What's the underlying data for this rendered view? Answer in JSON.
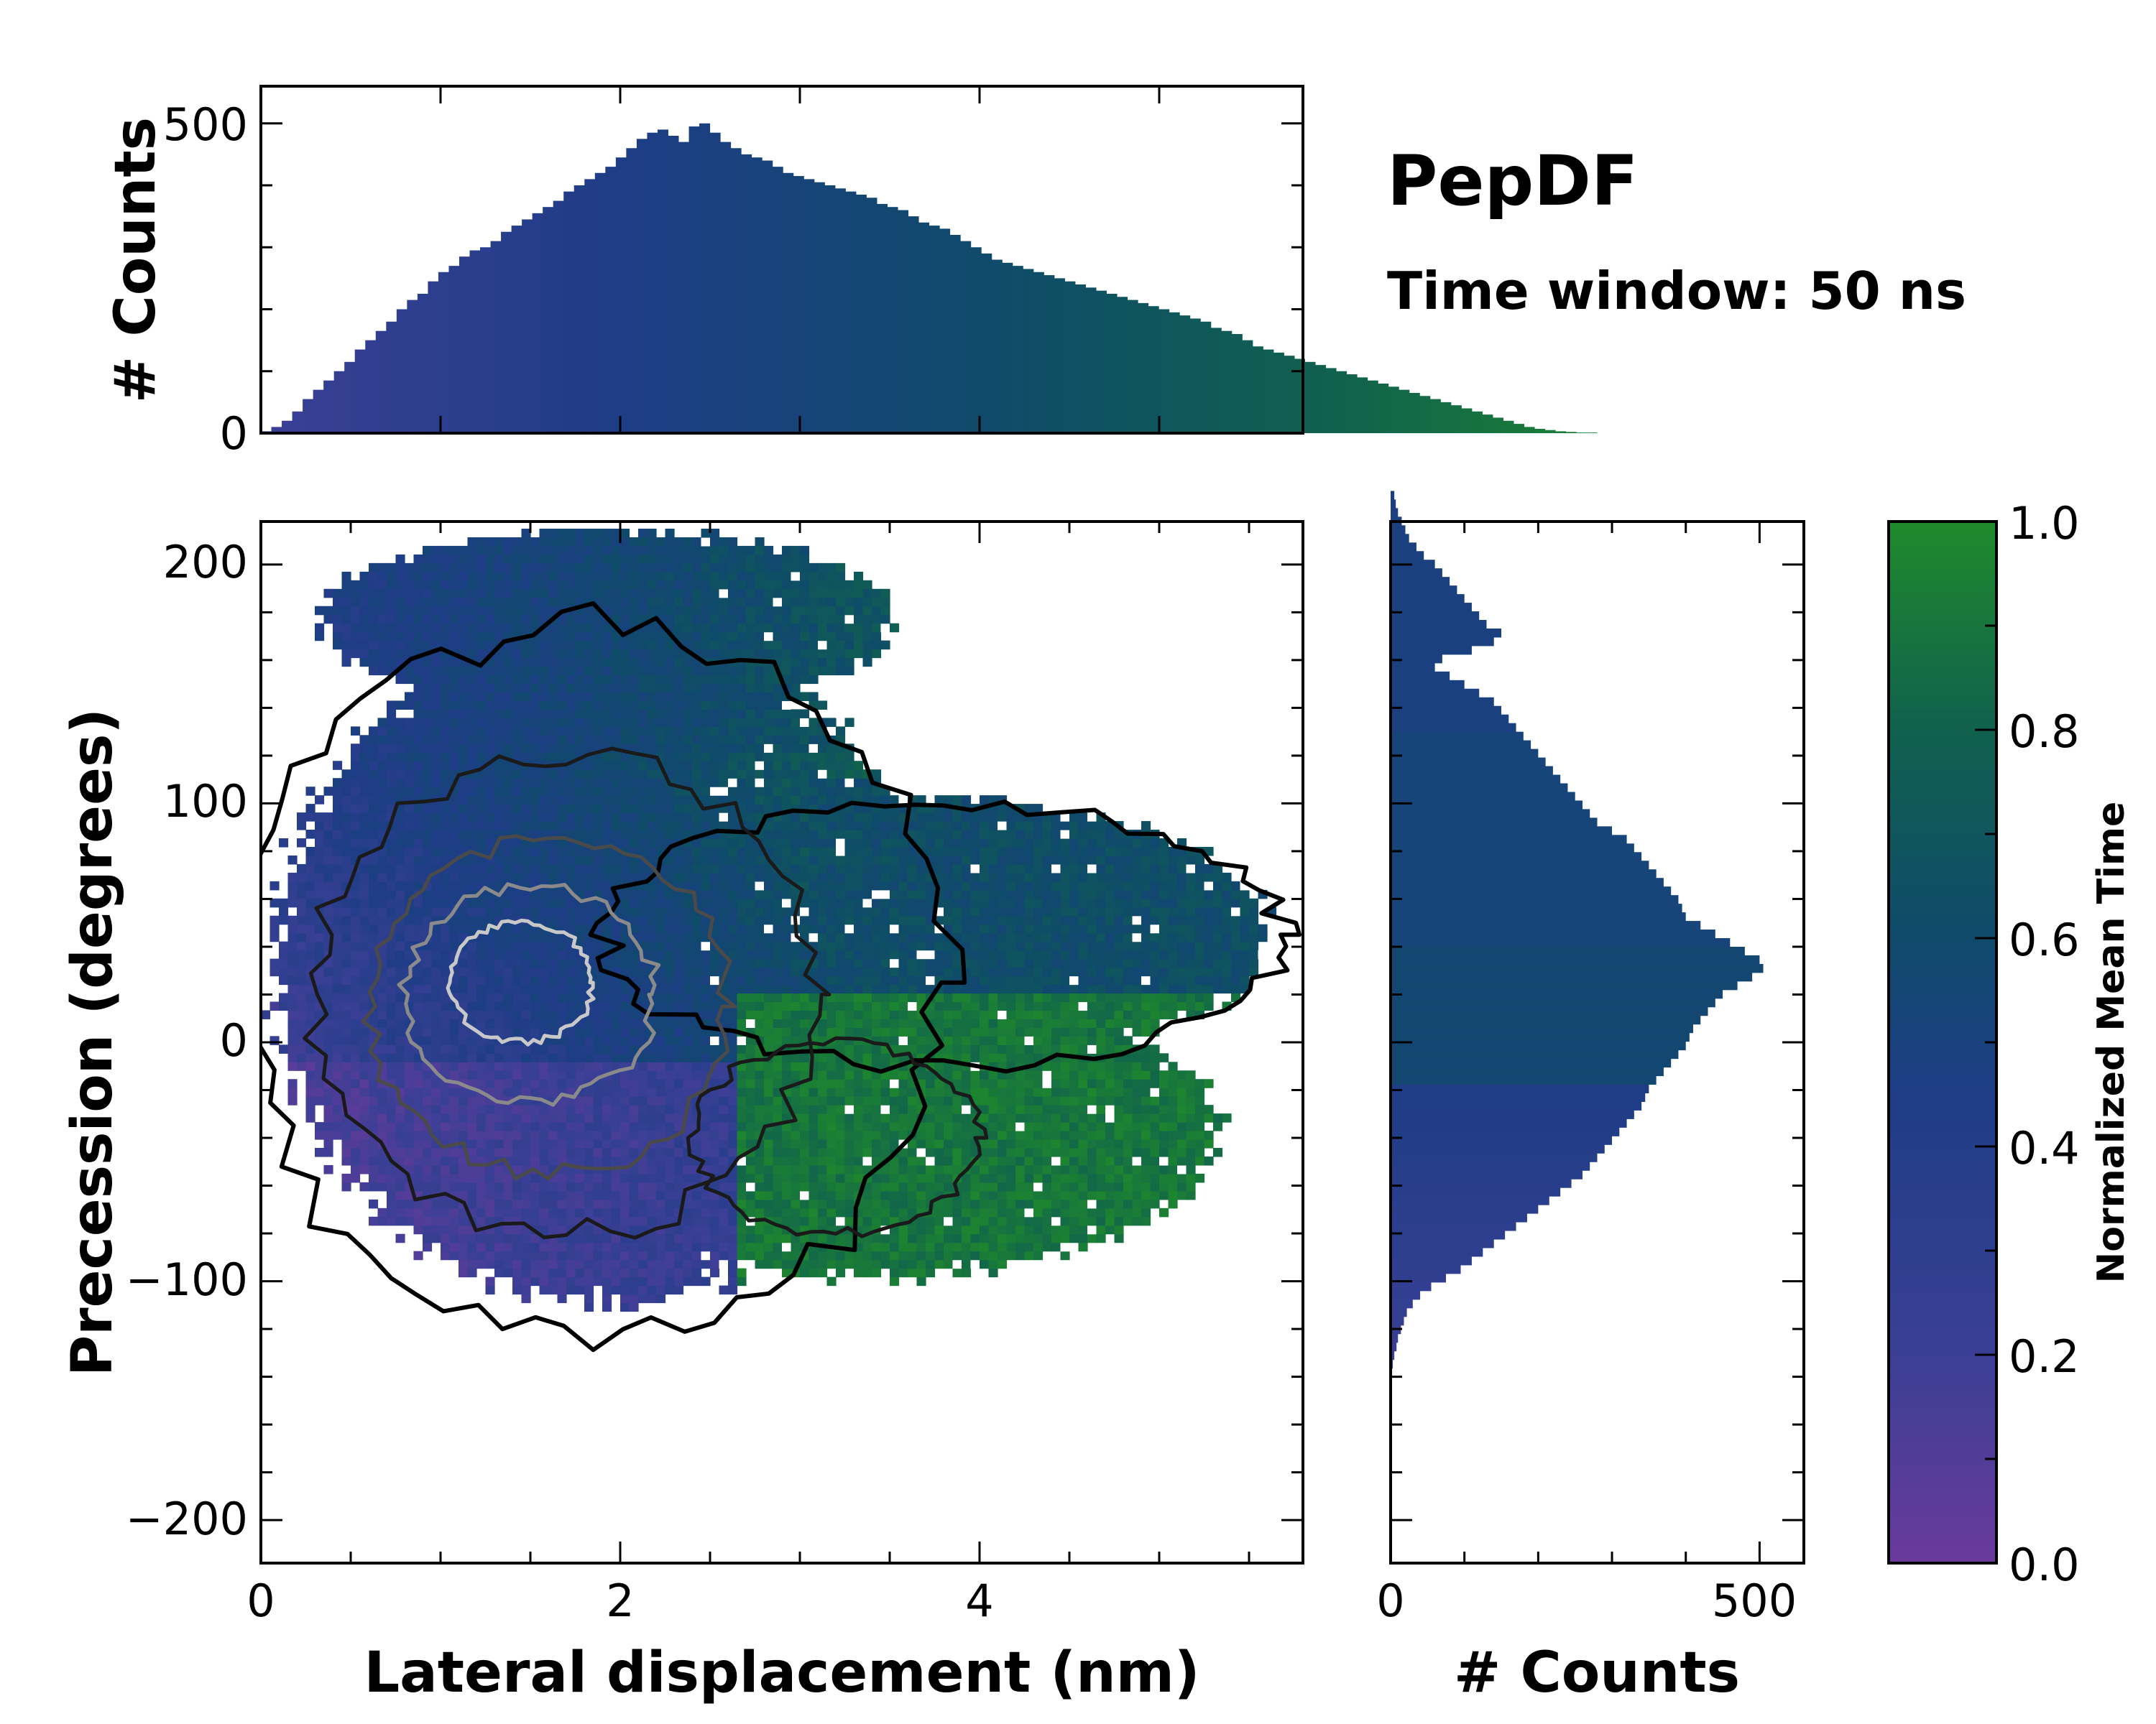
{
  "colors": {
    "colormap": [
      "#6a3a9c",
      "#3a3f95",
      "#1e3d86",
      "#0f4a6b",
      "#10614e",
      "#1f8a2b"
    ],
    "frame": "#000000"
  },
  "title": "PepDF",
  "subtitle": "Time window: 50 ns",
  "chart_data": [
    {
      "id": "top-histogram",
      "type": "bar",
      "title": "",
      "xlabel": "",
      "ylabel": "# Counts",
      "xlim": [
        0,
        5.8
      ],
      "ylim": [
        0,
        560
      ],
      "yticks": [
        0,
        500
      ],
      "bin_width": 0.0581,
      "x_start": 0.0,
      "values": [
        3,
        10,
        20,
        35,
        55,
        70,
        85,
        100,
        115,
        135,
        150,
        165,
        180,
        200,
        215,
        225,
        245,
        260,
        270,
        285,
        295,
        300,
        310,
        325,
        335,
        345,
        355,
        365,
        375,
        390,
        400,
        410,
        420,
        430,
        445,
        460,
        475,
        485,
        490,
        480,
        470,
        495,
        500,
        485,
        470,
        460,
        450,
        445,
        440,
        430,
        420,
        415,
        410,
        405,
        400,
        395,
        390,
        385,
        380,
        370,
        365,
        360,
        350,
        340,
        335,
        330,
        320,
        310,
        300,
        290,
        280,
        275,
        270,
        265,
        260,
        255,
        250,
        245,
        240,
        235,
        230,
        225,
        220,
        215,
        210,
        205,
        200,
        195,
        190,
        185,
        180,
        170,
        165,
        160,
        150,
        140,
        135,
        130,
        125,
        120,
        115,
        110,
        105,
        100,
        95,
        90,
        85,
        80,
        75,
        70,
        65,
        60,
        55,
        50,
        45,
        40,
        35,
        30,
        25,
        20,
        15,
        10,
        7,
        5,
        3,
        2,
        1,
        1
      ]
    },
    {
      "id": "right-histogram",
      "type": "bar",
      "orientation": "horizontal",
      "xlabel": "# Counts",
      "ylabel": "",
      "xlim": [
        0,
        560
      ],
      "ylim": [
        -218,
        218
      ],
      "xticks": [
        0,
        500
      ],
      "bin_width": 3.6,
      "y_start": -140,
      "values": [
        2,
        3,
        5,
        8,
        10,
        14,
        18,
        22,
        30,
        40,
        55,
        75,
        95,
        110,
        125,
        140,
        155,
        170,
        185,
        200,
        215,
        230,
        245,
        260,
        270,
        280,
        290,
        300,
        310,
        320,
        330,
        340,
        345,
        350,
        360,
        370,
        380,
        390,
        400,
        405,
        410,
        420,
        430,
        440,
        450,
        470,
        490,
        505,
        500,
        480,
        460,
        440,
        420,
        400,
        395,
        390,
        380,
        370,
        360,
        350,
        340,
        330,
        320,
        300,
        280,
        270,
        260,
        250,
        240,
        230,
        220,
        210,
        200,
        190,
        180,
        170,
        160,
        150,
        140,
        120,
        100,
        80,
        60,
        70,
        110,
        140,
        150,
        130,
        120,
        110,
        100,
        90,
        80,
        70,
        60,
        45,
        35,
        25,
        20,
        15,
        10,
        7,
        5
      ]
    },
    {
      "id": "heatmap",
      "type": "heatmap",
      "title": "",
      "xlabel": "Lateral displacement (nm)",
      "ylabel": "Precession (degrees)",
      "xlim": [
        0,
        5.8
      ],
      "ylim": [
        -218,
        218
      ],
      "xticks": [
        0,
        2,
        4
      ],
      "yticks": [
        -200,
        -100,
        0,
        100,
        200
      ],
      "color_variable": "Normalized Mean Time",
      "region_means": [
        {
          "region": "lower-left",
          "x": [
            0,
            2.5
          ],
          "y": [
            -100,
            0
          ],
          "value": 0.15
        },
        {
          "region": "left-center",
          "x": [
            0,
            2.5
          ],
          "y": [
            0,
            100
          ],
          "value": 0.35
        },
        {
          "region": "top",
          "x": [
            0.5,
            3.5
          ],
          "y": [
            120,
            210
          ],
          "value": 0.5
        },
        {
          "region": "right-upper",
          "x": [
            3.0,
            5.7
          ],
          "y": [
            20,
            100
          ],
          "value": 0.65
        },
        {
          "region": "right-lower",
          "x": [
            2.6,
            5.3
          ],
          "y": [
            -100,
            0
          ],
          "value": 0.95
        }
      ]
    },
    {
      "id": "colorbar",
      "type": "colorbar",
      "label": "Normalized Mean Time",
      "range": [
        0.0,
        1.0
      ],
      "ticks": [
        "0.0",
        "0.2",
        "0.4",
        "0.6",
        "0.8",
        "1.0"
      ]
    }
  ],
  "labels": {
    "top_ylabel": "# Counts",
    "top_ticks": [
      "0",
      "500"
    ],
    "main_xlabel": "Lateral displacement (nm)",
    "main_ylabel": "Precession (degrees)",
    "main_xticks": [
      "0",
      "2",
      "4"
    ],
    "main_yticks": [
      "200",
      "100",
      "0",
      "−100",
      "−200"
    ],
    "right_xlabel": "# Counts",
    "right_xticks": [
      "0",
      "500"
    ],
    "cb_label": "Normalized Mean Time",
    "cb_ticks": [
      "1.0",
      "0.8",
      "0.6",
      "0.4",
      "0.2",
      "0.0"
    ]
  }
}
